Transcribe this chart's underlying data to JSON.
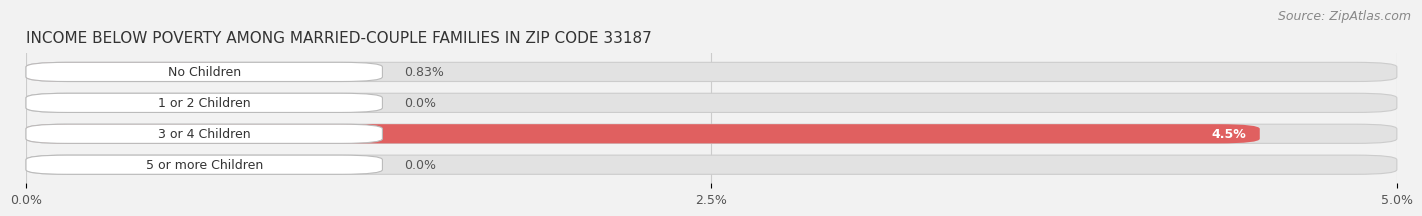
{
  "title": "INCOME BELOW POVERTY AMONG MARRIED-COUPLE FAMILIES IN ZIP CODE 33187",
  "source": "Source: ZipAtlas.com",
  "categories": [
    "No Children",
    "1 or 2 Children",
    "3 or 4 Children",
    "5 or more Children"
  ],
  "values": [
    0.83,
    0.0,
    4.5,
    0.0
  ],
  "bar_colors": [
    "#f08098",
    "#f0b870",
    "#e06060",
    "#90b8d8"
  ],
  "value_labels": [
    "0.83%",
    "0.0%",
    "4.5%",
    "0.0%"
  ],
  "value_inside": [
    false,
    false,
    true,
    false
  ],
  "xlim": [
    0,
    5.0
  ],
  "xticks": [
    0.0,
    2.5,
    5.0
  ],
  "xticklabels": [
    "0.0%",
    "2.5%",
    "5.0%"
  ],
  "background_color": "#f2f2f2",
  "bar_background_color": "#e2e2e2",
  "title_fontsize": 11,
  "source_fontsize": 9,
  "label_fontsize": 9,
  "value_fontsize": 9
}
